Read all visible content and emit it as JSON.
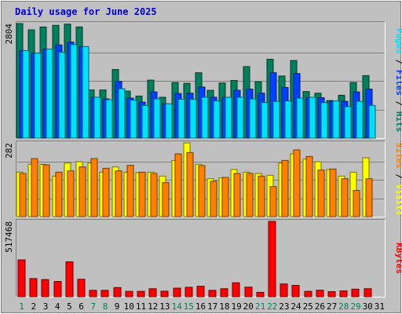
{
  "title": "Daily usage for June 2025",
  "colors": {
    "background": "#c0c0c0",
    "plot_bg": "#c0c0c0",
    "grid": "#808080",
    "hits": "#00805c",
    "files": "#0040ff",
    "pages": "#00e0ff",
    "visits": "#ffff00",
    "sites": "#ff8000",
    "kbytes": "#ff0000",
    "title": "#0000cc",
    "weekend_day": "#00805c",
    "weekday": "#000000"
  },
  "chart_data": [
    {
      "type": "bar",
      "panel": "hits-files-pages",
      "ytick_label": "2804",
      "ylim": [
        0,
        2804
      ],
      "grid": true,
      "legend": [
        {
          "name": "Pages",
          "color": "#00e0ff"
        },
        {
          "name": "Files",
          "color": "#0040ff"
        },
        {
          "name": "Hits",
          "color": "#00805c"
        }
      ],
      "categories": [
        "1",
        "2",
        "3",
        "4",
        "5",
        "6",
        "7",
        "8",
        "9",
        "10",
        "11",
        "12",
        "13",
        "14",
        "15",
        "16",
        "17",
        "18",
        "19",
        "20",
        "21",
        "22",
        "23",
        "24",
        "25",
        "26",
        "27",
        "28",
        "29",
        "30",
        "31"
      ],
      "series": [
        {
          "name": "Hits",
          "values": [
            2804,
            2650,
            2720,
            2760,
            2790,
            2720,
            1180,
            1180,
            1680,
            1150,
            1030,
            1420,
            1000,
            1360,
            1340,
            1600,
            1170,
            1350,
            1410,
            1750,
            1380,
            1930,
            1520,
            1900,
            1140,
            1100,
            920,
            1050,
            1360,
            1530,
            null
          ]
        },
        {
          "name": "Files",
          "values": [
            2140,
            2080,
            2180,
            2280,
            2350,
            2240,
            1000,
            960,
            1390,
            980,
            880,
            1130,
            840,
            1090,
            1100,
            1250,
            1000,
            1000,
            1170,
            1200,
            1100,
            1600,
            1240,
            1580,
            990,
            990,
            900,
            900,
            1130,
            1200,
            null
          ]
        },
        {
          "name": "Pages",
          "values": [
            2140,
            2080,
            2180,
            2100,
            2290,
            2240,
            1000,
            940,
            1210,
            930,
            800,
            960,
            840,
            950,
            950,
            1000,
            910,
            1000,
            1000,
            960,
            870,
            900,
            910,
            980,
            1000,
            870,
            910,
            770,
            900,
            800,
            null
          ]
        }
      ]
    },
    {
      "type": "bar",
      "panel": "visits-sites",
      "ytick_label": "282",
      "ylim": [
        0,
        282
      ],
      "grid": true,
      "legend": [
        {
          "name": "Sites",
          "color": "#ff8000"
        },
        {
          "name": "Visits",
          "color": "#ffff00"
        }
      ],
      "categories": [
        "1",
        "2",
        "3",
        "4",
        "5",
        "6",
        "7",
        "8",
        "9",
        "10",
        "11",
        "12",
        "13",
        "14",
        "15",
        "16",
        "17",
        "18",
        "19",
        "20",
        "21",
        "22",
        "23",
        "24",
        "25",
        "26",
        "27",
        "28",
        "29",
        "30",
        "31"
      ],
      "series": [
        {
          "name": "Visits",
          "values": [
            170,
            200,
            200,
            155,
            205,
            210,
            205,
            170,
            190,
            170,
            168,
            170,
            155,
            215,
            282,
            200,
            145,
            148,
            180,
            170,
            165,
            158,
            205,
            240,
            220,
            210,
            180,
            155,
            170,
            225,
            null
          ]
        },
        {
          "name": "Sites",
          "values": [
            165,
            222,
            198,
            170,
            175,
            190,
            222,
            185,
            175,
            196,
            170,
            165,
            130,
            240,
            245,
            195,
            135,
            150,
            165,
            165,
            155,
            115,
            215,
            255,
            230,
            178,
            182,
            145,
            100,
            145,
            null
          ]
        }
      ]
    },
    {
      "type": "bar",
      "panel": "kbytes",
      "ytick_label": "517468",
      "ylim": [
        0,
        517468
      ],
      "grid": false,
      "legend": [
        {
          "name": "KBytes",
          "color": "#ff0000"
        }
      ],
      "categories": [
        "1",
        "2",
        "3",
        "4",
        "5",
        "6",
        "7",
        "8",
        "9",
        "10",
        "11",
        "12",
        "13",
        "14",
        "15",
        "16",
        "17",
        "18",
        "19",
        "20",
        "21",
        "22",
        "23",
        "24",
        "25",
        "26",
        "27",
        "28",
        "29",
        "30",
        "31"
      ],
      "series": [
        {
          "name": "KBytes",
          "values": [
            253000,
            125000,
            118000,
            105000,
            240000,
            120000,
            44000,
            44000,
            63000,
            37000,
            37000,
            55000,
            38000,
            59000,
            65000,
            72000,
            44000,
            55000,
            96000,
            66000,
            30000,
            517468,
            88000,
            78000,
            37000,
            45000,
            35000,
            40000,
            52000,
            55000,
            null
          ]
        }
      ]
    }
  ]
}
